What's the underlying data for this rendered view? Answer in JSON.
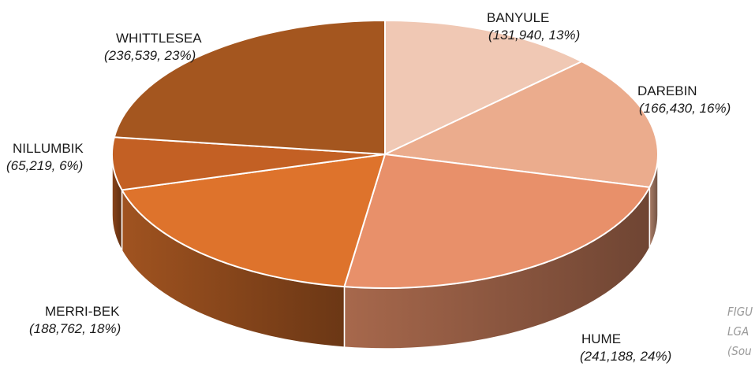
{
  "chart_data": {
    "type": "pie",
    "style": "3d",
    "slices": [
      {
        "name": "BANYULE",
        "value": 131940,
        "percent": "13%",
        "value_text": "(131,940, 13%)",
        "color": "#f0c8b4"
      },
      {
        "name": "DAREBIN",
        "value": 166430,
        "percent": "16%",
        "value_text": "(166,430, 16%)",
        "color": "#ebac8d"
      },
      {
        "name": "HUME",
        "value": 241188,
        "percent": "24%",
        "value_text": "(241,188, 24%)",
        "color": "#e8906a"
      },
      {
        "name": "MERRI-BEK",
        "value": 188762,
        "percent": "18%",
        "value_text": "(188,762, 18%)",
        "color": "#de732c"
      },
      {
        "name": "NILLUMBIK",
        "value": 65219,
        "percent": "6%",
        "value_text": "(65,219, 6%)",
        "color": "#c36024"
      },
      {
        "name": "WHITTLESEA",
        "value": 236539,
        "percent": "23%",
        "value_text": "(236,539, 23%)",
        "color": "#a4561f"
      }
    ]
  },
  "caption": {
    "lines": [
      "FIGU",
      "LGA",
      "(Sou"
    ]
  }
}
